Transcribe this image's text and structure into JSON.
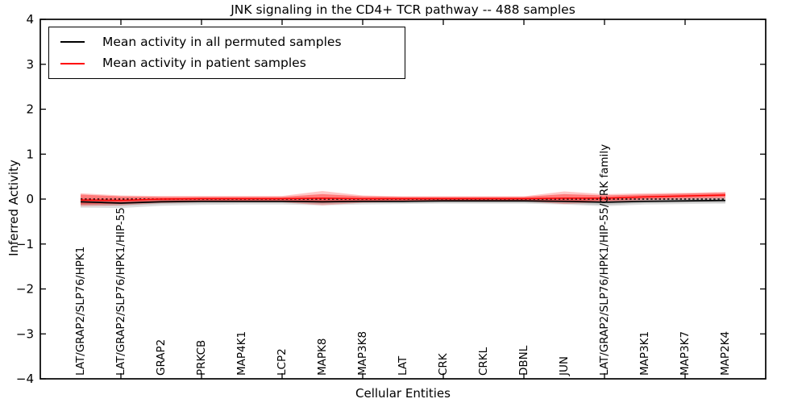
{
  "title": "JNK signaling in the CD4+ TCR pathway -- 488 samples",
  "legend": {
    "items": [
      {
        "label": "Mean activity in all permuted samples",
        "color": "#000000"
      },
      {
        "label": "Mean activity in patient samples",
        "color": "#ff0000"
      }
    ]
  },
  "chart_data": {
    "type": "line",
    "title": "JNK signaling in the CD4+ TCR pathway -- 488 samples",
    "xlabel": "Cellular Entities",
    "ylabel": "Inferred Activity",
    "ylim": [
      -4,
      4
    ],
    "yticks": [
      4,
      3,
      2,
      1,
      0,
      -1,
      -2,
      -3,
      -4
    ],
    "ytick_labels": [
      "4",
      "3",
      "2",
      "1",
      "0",
      "−1",
      "−2",
      "−3",
      "−4"
    ],
    "xtick_indices": [
      1,
      3,
      5,
      7,
      9,
      11,
      13,
      15
    ],
    "grid": false,
    "legend_position": "upper left",
    "categories": [
      "LAT/GRAP2/SLP76/HPK1",
      "LAT/GRAP2/SLP76/HPK1/HIP-55",
      "GRAP2",
      "PRKCB",
      "MAP4K1",
      "LCP2",
      "MAPK8",
      "MAP3K8",
      "LAT",
      "CRK",
      "CRKL",
      "DBNL",
      "JUN",
      "LAT/GRAP2/SLP76/HPK1/HIP-55/CRK family",
      "MAP3K1",
      "MAP3K7",
      "MAP2K4"
    ],
    "series": [
      {
        "name": "Mean activity in all permuted samples",
        "color": "#000000",
        "line_width": 1.7,
        "values": [
          -0.06,
          -0.09,
          -0.06,
          -0.05,
          -0.05,
          -0.05,
          -0.06,
          -0.05,
          -0.05,
          -0.04,
          -0.04,
          -0.04,
          -0.05,
          -0.07,
          -0.05,
          -0.04,
          -0.03
        ]
      },
      {
        "name": "Mean activity in patient samples",
        "color": "#ff0000",
        "line_width": 1.5,
        "values": [
          -0.02,
          -0.03,
          0.0,
          0.01,
          0.01,
          0.01,
          0.02,
          0.01,
          0.01,
          0.01,
          0.01,
          0.01,
          0.02,
          0.02,
          0.05,
          0.07,
          0.09
        ]
      }
    ],
    "bands": [
      {
        "name": "permuted-std-outer",
        "color": "rgba(0,0,0,0.13)",
        "upper": [
          0.01,
          -0.01,
          0.01,
          0.02,
          0.02,
          0.02,
          0.02,
          0.02,
          0.02,
          0.02,
          0.02,
          0.02,
          0.02,
          0.01,
          0.02,
          0.03,
          0.04
        ],
        "lower": [
          -0.19,
          -0.2,
          -0.15,
          -0.13,
          -0.12,
          -0.12,
          -0.14,
          -0.12,
          -0.11,
          -0.1,
          -0.1,
          -0.1,
          -0.12,
          -0.16,
          -0.12,
          -0.11,
          -0.1
        ]
      },
      {
        "name": "permuted-std-inner",
        "color": "rgba(0,0,0,0.12)",
        "upper": [
          -0.02,
          -0.05,
          -0.02,
          -0.01,
          -0.01,
          -0.01,
          -0.02,
          -0.01,
          -0.01,
          0.0,
          0.0,
          0.0,
          -0.01,
          -0.03,
          -0.01,
          0.0,
          0.01
        ],
        "lower": [
          -0.13,
          -0.15,
          -0.11,
          -0.1,
          -0.09,
          -0.09,
          -0.11,
          -0.09,
          -0.09,
          -0.08,
          -0.08,
          -0.08,
          -0.1,
          -0.13,
          -0.09,
          -0.08,
          -0.08
        ]
      },
      {
        "name": "patient-std-outer",
        "color": "rgba(255,0,0,0.22)",
        "upper": [
          0.13,
          0.08,
          0.07,
          0.07,
          0.07,
          0.07,
          0.18,
          0.08,
          0.06,
          0.06,
          0.06,
          0.06,
          0.17,
          0.11,
          0.13,
          0.14,
          0.16
        ],
        "lower": [
          -0.16,
          -0.14,
          -0.09,
          -0.07,
          -0.07,
          -0.07,
          -0.14,
          -0.08,
          -0.06,
          -0.05,
          -0.05,
          -0.05,
          -0.11,
          -0.07,
          -0.03,
          -0.01,
          0.0
        ]
      },
      {
        "name": "patient-std-inner",
        "color": "rgba(255,0,0,0.38)",
        "upper": [
          0.1,
          0.06,
          0.05,
          0.05,
          0.05,
          0.05,
          0.11,
          0.06,
          0.05,
          0.05,
          0.05,
          0.05,
          0.11,
          0.08,
          0.1,
          0.12,
          0.14
        ],
        "lower": [
          -0.12,
          -0.1,
          -0.06,
          -0.04,
          -0.04,
          -0.04,
          -0.08,
          -0.05,
          -0.04,
          -0.03,
          -0.03,
          -0.03,
          -0.06,
          -0.04,
          0.0,
          0.02,
          0.04
        ]
      }
    ],
    "zero_line": {
      "value": 0,
      "style": "dashed",
      "color": "#000000"
    }
  }
}
